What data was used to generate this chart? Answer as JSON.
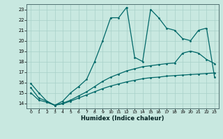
{
  "title": "",
  "xlabel": "Humidex (Indice chaleur)",
  "bg_color": "#c8e8e0",
  "line_color": "#006868",
  "grid_color": "#a8d0c8",
  "xlim": [
    -0.5,
    23.5
  ],
  "ylim": [
    13.5,
    23.5
  ],
  "xticks": [
    0,
    1,
    2,
    3,
    4,
    5,
    6,
    7,
    8,
    9,
    10,
    11,
    12,
    13,
    14,
    15,
    16,
    17,
    18,
    19,
    20,
    21,
    22,
    23
  ],
  "yticks": [
    14,
    15,
    16,
    17,
    18,
    19,
    20,
    21,
    22,
    23
  ],
  "line1_x": [
    0,
    1,
    2,
    3,
    4,
    5,
    6,
    7,
    8,
    9,
    10,
    11,
    12,
    13,
    14,
    15,
    16,
    17,
    18,
    19,
    20,
    21,
    22,
    23
  ],
  "line1_y": [
    15.9,
    15.0,
    14.2,
    13.8,
    14.2,
    15.0,
    15.6,
    16.3,
    18.0,
    20.0,
    22.2,
    22.2,
    23.2,
    18.4,
    18.0,
    23.0,
    22.2,
    21.2,
    21.0,
    20.2,
    20.0,
    21.0,
    21.2,
    16.5
  ],
  "line2_x": [
    0,
    1,
    2,
    3,
    4,
    5,
    6,
    7,
    8,
    9,
    10,
    11,
    12,
    13,
    14,
    15,
    16,
    17,
    18,
    19,
    20,
    21,
    22,
    23
  ],
  "line2_y": [
    15.5,
    14.5,
    14.2,
    13.8,
    14.0,
    14.3,
    14.7,
    15.1,
    15.6,
    16.1,
    16.5,
    16.8,
    17.1,
    17.3,
    17.5,
    17.6,
    17.7,
    17.8,
    17.85,
    18.8,
    19.0,
    18.8,
    18.2,
    17.8
  ],
  "line3_x": [
    0,
    1,
    2,
    3,
    4,
    5,
    6,
    7,
    8,
    9,
    10,
    11,
    12,
    13,
    14,
    15,
    16,
    17,
    18,
    19,
    20,
    21,
    22,
    23
  ],
  "line3_y": [
    15.0,
    14.3,
    14.1,
    13.8,
    13.95,
    14.2,
    14.5,
    14.8,
    15.1,
    15.4,
    15.65,
    15.85,
    16.05,
    16.2,
    16.35,
    16.45,
    16.5,
    16.6,
    16.65,
    16.7,
    16.75,
    16.8,
    16.85,
    16.9
  ]
}
